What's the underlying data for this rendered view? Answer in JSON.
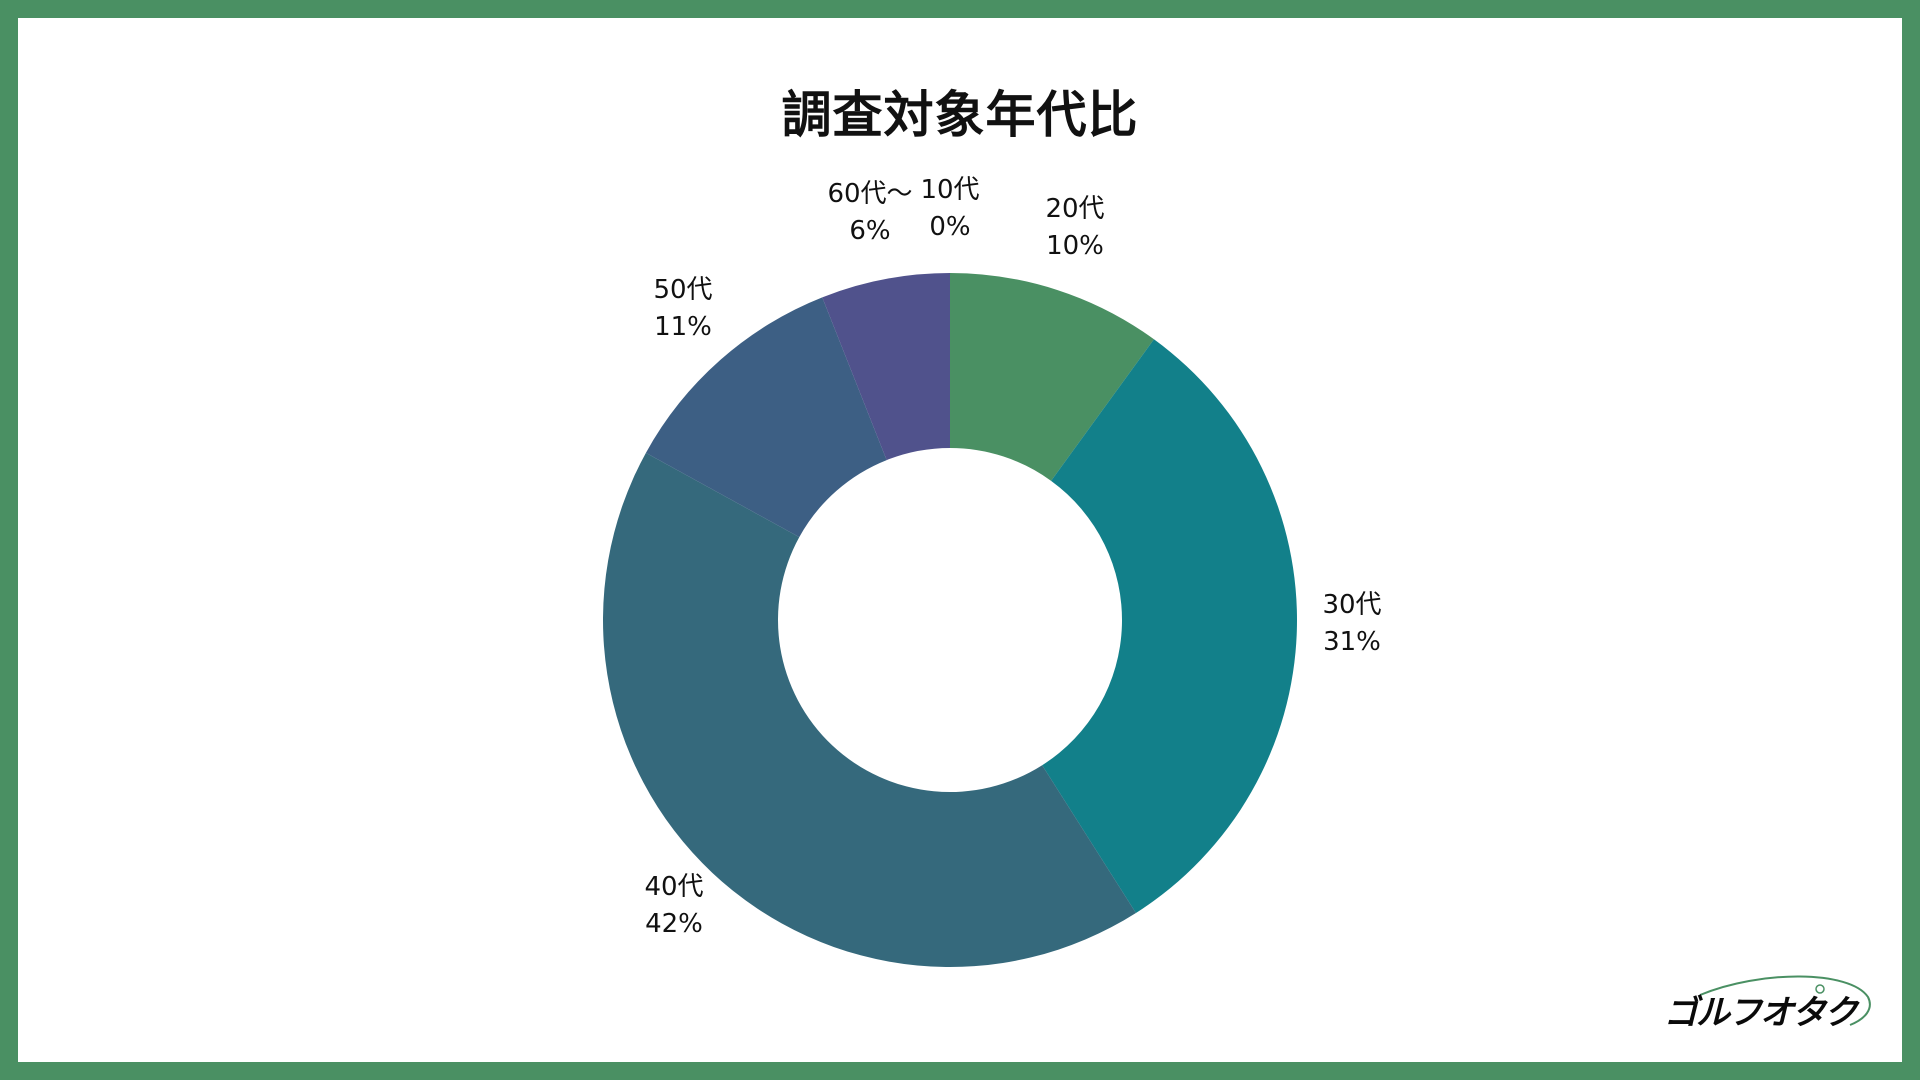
{
  "chart_data": {
    "type": "pie",
    "variant": "donut",
    "title": "調査対象年代比",
    "slices": [
      {
        "label": "10代",
        "value": 0,
        "display": "0%",
        "color": "#4a9063"
      },
      {
        "label": "20代",
        "value": 10,
        "display": "10%",
        "color": "#4a9063"
      },
      {
        "label": "30代",
        "value": 31,
        "display": "31%",
        "color": "#12808a"
      },
      {
        "label": "40代",
        "value": 42,
        "display": "42%",
        "color": "#35697c"
      },
      {
        "label": "50代",
        "value": 11,
        "display": "11%",
        "color": "#3d5f84"
      },
      {
        "label": "60代～",
        "value": 6,
        "display": "6%",
        "color": "#50528c"
      }
    ],
    "legend": "none"
  },
  "logo": {
    "text": "ゴルフオタク"
  },
  "colors": {
    "frame": "#4a9063",
    "background": "#ffffff"
  }
}
